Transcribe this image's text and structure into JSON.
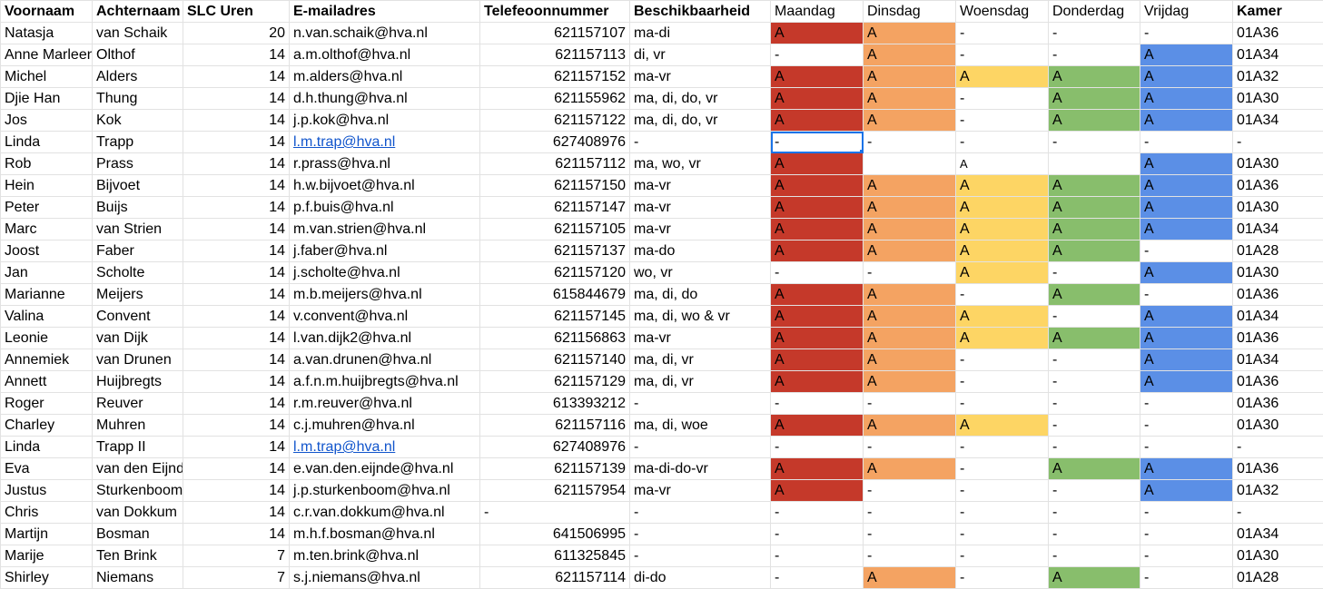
{
  "headers": [
    "Voornaam",
    "Achternaam",
    "SLC Uren",
    "E-mailadres",
    "Telefeoonnummer",
    "Beschikbaarheid",
    "Maandag",
    "Dinsdag",
    "Woensdag",
    "Donderdag",
    "Vrijdag",
    "Kamer"
  ],
  "colors": {
    "maandag": "#c5392a",
    "dinsdag": "#f4a362",
    "woensdag": "#fdd564",
    "donderdag": "#88be6c",
    "vrijdag": "#5b8fe6"
  },
  "rows": [
    {
      "first": "Natasja",
      "last": "van Schaik",
      "uren": "20",
      "email": "n.van.schaik@hva.nl",
      "phone": "621157107",
      "avail": "ma-di",
      "days": [
        "A",
        "A",
        "-",
        "-",
        "-"
      ],
      "fill": [
        1,
        1,
        0,
        0,
        0
      ],
      "kamer": "01A36"
    },
    {
      "first": "Anne Marleen",
      "last": "Olthof",
      "uren": "14",
      "email": "a.m.olthof@hva.nl",
      "phone": "621157113",
      "avail": "di, vr",
      "days": [
        "-",
        "A",
        "-",
        "-",
        "A"
      ],
      "fill": [
        0,
        1,
        0,
        0,
        1
      ],
      "kamer": "01A34"
    },
    {
      "first": "Michel",
      "last": "Alders",
      "uren": "14",
      "email": "m.alders@hva.nl",
      "phone": "621157152",
      "avail": "ma-vr",
      "days": [
        "A",
        "A",
        "A",
        "A",
        "A"
      ],
      "fill": [
        1,
        1,
        1,
        1,
        1
      ],
      "kamer": "01A32"
    },
    {
      "first": "Djie Han",
      "last": "Thung",
      "uren": "14",
      "email": "d.h.thung@hva.nl",
      "phone": "621155962",
      "avail": "ma, di, do, vr",
      "days": [
        "A",
        "A",
        "-",
        "A",
        "A"
      ],
      "fill": [
        1,
        1,
        0,
        1,
        1
      ],
      "kamer": "01A30"
    },
    {
      "first": "Jos",
      "last": "Kok",
      "uren": "14",
      "email": "j.p.kok@hva.nl",
      "phone": "621157122",
      "avail": "ma, di, do, vr",
      "days": [
        "A",
        "A",
        "-",
        "A",
        "A"
      ],
      "fill": [
        1,
        1,
        0,
        1,
        1
      ],
      "kamer": "01A34"
    },
    {
      "first": "Linda",
      "last": "Trapp",
      "uren": "14",
      "email": "l.m.trap@hva.nl",
      "link": true,
      "phone": "627408976",
      "avail": "-",
      "days": [
        "-",
        "-",
        "-",
        "-",
        "-"
      ],
      "fill": [
        0,
        0,
        0,
        0,
        0
      ],
      "kamer": "-",
      "selected": true
    },
    {
      "first": "Rob",
      "last": "Prass",
      "uren": "14",
      "email": "r.prass@hva.nl",
      "phone": "621157112",
      "avail": "ma, wo, vr",
      "days": [
        "A",
        "",
        "A",
        "",
        "A"
      ],
      "fill": [
        1,
        0,
        0,
        0,
        1
      ],
      "kamer": "01A30"
    },
    {
      "first": "Hein",
      "last": "Bijvoet",
      "uren": "14",
      "email": "h.w.bijvoet@hva.nl",
      "phone": "621157150",
      "avail": "ma-vr",
      "days": [
        "A",
        "A",
        "A",
        "A",
        "A"
      ],
      "fill": [
        1,
        1,
        1,
        1,
        1
      ],
      "kamer": "01A36"
    },
    {
      "first": "Peter",
      "last": "Buijs",
      "uren": "14",
      "email": "p.f.buis@hva.nl",
      "phone": "621157147",
      "avail": "ma-vr",
      "days": [
        "A",
        "A",
        "A",
        "A",
        "A"
      ],
      "fill": [
        1,
        1,
        1,
        1,
        1
      ],
      "kamer": "01A30"
    },
    {
      "first": "Marc",
      "last": "van Strien",
      "uren": "14",
      "email": "m.van.strien@hva.nl",
      "phone": "621157105",
      "avail": "ma-vr",
      "days": [
        "A",
        "A",
        "A",
        "A",
        "A"
      ],
      "fill": [
        1,
        1,
        1,
        1,
        1
      ],
      "kamer": "01A34"
    },
    {
      "first": "Joost",
      "last": "Faber",
      "uren": "14",
      "email": "j.faber@hva.nl",
      "phone": "621157137",
      "avail": "ma-do",
      "days": [
        "A",
        "A",
        "A",
        "A",
        "-"
      ],
      "fill": [
        1,
        1,
        1,
        1,
        0
      ],
      "kamer": "01A28"
    },
    {
      "first": "Jan",
      "last": "Scholte",
      "uren": "14",
      "email": "j.scholte@hva.nl",
      "phone": "621157120",
      "avail": "wo, vr",
      "days": [
        "-",
        "-",
        "A",
        "-",
        "A"
      ],
      "fill": [
        0,
        0,
        1,
        0,
        1
      ],
      "kamer": "01A30"
    },
    {
      "first": "Marianne",
      "last": "Meijers",
      "uren": "14",
      "email": "m.b.meijers@hva.nl",
      "phone": "615844679",
      "avail": "ma, di, do",
      "days": [
        "A",
        "A",
        "-",
        "A",
        "-"
      ],
      "fill": [
        1,
        1,
        0,
        1,
        0
      ],
      "kamer": "01A36"
    },
    {
      "first": "Valina",
      "last": "Convent",
      "uren": "14",
      "email": "v.convent@hva.nl",
      "phone": "621157145",
      "avail": "ma, di, wo & vr",
      "days": [
        "A",
        "A",
        "A",
        "-",
        "A"
      ],
      "fill": [
        1,
        1,
        1,
        0,
        1
      ],
      "kamer": "01A34"
    },
    {
      "first": "Leonie",
      "last": "van Dijk",
      "uren": "14",
      "email": "l.van.dijk2@hva.nl",
      "phone": "621156863",
      "avail": "ma-vr",
      "days": [
        "A",
        "A",
        "A",
        "A",
        "A"
      ],
      "fill": [
        1,
        1,
        1,
        1,
        1
      ],
      "kamer": "01A36"
    },
    {
      "first": "Annemiek",
      "last": "van Drunen",
      "uren": "14",
      "email": "a.van.drunen@hva.nl",
      "phone": "621157140",
      "avail": "ma, di, vr",
      "days": [
        "A",
        "A",
        "-",
        "-",
        "A"
      ],
      "fill": [
        1,
        1,
        0,
        0,
        1
      ],
      "kamer": "01A34"
    },
    {
      "first": "Annett",
      "last": "Huijbregts",
      "uren": "14",
      "email": "a.f.n.m.huijbregts@hva.nl",
      "phone": "621157129",
      "avail": "ma, di, vr",
      "days": [
        "A",
        "A",
        "-",
        "-",
        "A"
      ],
      "fill": [
        1,
        1,
        0,
        0,
        1
      ],
      "kamer": "01A36"
    },
    {
      "first": "Roger",
      "last": "Reuver",
      "uren": "14",
      "email": "r.m.reuver@hva.nl",
      "phone": "613393212",
      "avail": "-",
      "days": [
        "-",
        "-",
        "-",
        "-",
        "-"
      ],
      "fill": [
        0,
        0,
        0,
        0,
        0
      ],
      "kamer": "01A36"
    },
    {
      "first": "Charley",
      "last": "Muhren",
      "uren": "14",
      "email": "c.j.muhren@hva.nl",
      "phone": "621157116",
      "avail": "ma, di, woe",
      "days": [
        "A",
        "A",
        "A",
        "-",
        "-"
      ],
      "fill": [
        1,
        1,
        1,
        0,
        0
      ],
      "kamer": "01A30"
    },
    {
      "first": "Linda",
      "last": "Trapp II",
      "uren": "14",
      "email": "l.m.trap@hva.nl",
      "link": true,
      "phone": "627408976",
      "avail": "-",
      "days": [
        "-",
        "-",
        "-",
        "-",
        "-"
      ],
      "fill": [
        0,
        0,
        0,
        0,
        0
      ],
      "kamer": "-"
    },
    {
      "first": "Eva",
      "last": "van den Eijnde",
      "uren": "14",
      "email": "e.van.den.eijnde@hva.nl",
      "phone": "621157139",
      "avail": "ma-di-do-vr",
      "days": [
        "A",
        "A",
        "-",
        "A",
        "A"
      ],
      "fill": [
        1,
        1,
        0,
        1,
        1
      ],
      "kamer": "01A36"
    },
    {
      "first": "Justus",
      "last": "Sturkenboom",
      "uren": "14",
      "email": "j.p.sturkenboom@hva.nl",
      "phone": "621157954",
      "avail": "ma-vr",
      "days": [
        "A",
        "-",
        "-",
        "-",
        "A"
      ],
      "fill": [
        1,
        0,
        0,
        0,
        1
      ],
      "kamer": "01A32"
    },
    {
      "first": "Chris",
      "last": "van Dokkum",
      "uren": "14",
      "email": "c.r.van.dokkum@hva.nl",
      "phone": "-",
      "phoneLeft": true,
      "avail": "-",
      "days": [
        "-",
        "-",
        "-",
        "-",
        "-"
      ],
      "fill": [
        0,
        0,
        0,
        0,
        0
      ],
      "kamer": "-"
    },
    {
      "first": "Martijn",
      "last": "Bosman",
      "uren": "14",
      "email": "m.h.f.bosman@hva.nl",
      "phone": "641506995",
      "avail": "-",
      "days": [
        "-",
        "-",
        "-",
        "-",
        "-"
      ],
      "fill": [
        0,
        0,
        0,
        0,
        0
      ],
      "kamer": "01A34"
    },
    {
      "first": "Marije",
      "last": "Ten Brink",
      "uren": "7",
      "email": "m.ten.brink@hva.nl",
      "phone": "611325845",
      "avail": "-",
      "days": [
        "-",
        "-",
        "-",
        "-",
        "-"
      ],
      "fill": [
        0,
        0,
        0,
        0,
        0
      ],
      "kamer": "01A30"
    },
    {
      "first": "Shirley",
      "last": "Niemans",
      "uren": "7",
      "email": "s.j.niemans@hva.nl",
      "phone": "621157114",
      "avail": "di-do",
      "days": [
        "-",
        "A",
        "-",
        "A",
        "-"
      ],
      "fill": [
        0,
        1,
        0,
        1,
        0
      ],
      "kamer": "01A28"
    }
  ]
}
